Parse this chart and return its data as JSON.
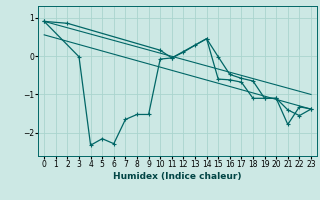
{
  "xlabel": "Humidex (Indice chaleur)",
  "bg_color": "#cce8e4",
  "grid_color": "#aad4ce",
  "line_color": "#006666",
  "xlim": [
    -0.5,
    23.5
  ],
  "ylim": [
    -2.6,
    1.3
  ],
  "yticks": [
    1,
    0,
    -1,
    -2
  ],
  "xticks": [
    0,
    1,
    2,
    3,
    4,
    5,
    6,
    7,
    8,
    9,
    10,
    11,
    12,
    13,
    14,
    15,
    16,
    17,
    18,
    19,
    20,
    21,
    22,
    23
  ],
  "series1_x": [
    0,
    2,
    10,
    11,
    12,
    13,
    14,
    15,
    16,
    17,
    18,
    19,
    20,
    21,
    22,
    23
  ],
  "series1_y": [
    0.9,
    0.85,
    0.15,
    -0.05,
    0.1,
    0.28,
    0.45,
    -0.02,
    -0.48,
    -0.58,
    -0.65,
    -1.1,
    -1.1,
    -1.4,
    -1.55,
    -1.38
  ],
  "series2_x": [
    0,
    3,
    4,
    5,
    6,
    7,
    8,
    9,
    10,
    11,
    14,
    15,
    16,
    17,
    18,
    19,
    20,
    21,
    22,
    23
  ],
  "series2_y": [
    0.9,
    -0.02,
    -2.32,
    -2.15,
    -2.28,
    -1.65,
    -1.52,
    -1.52,
    -0.08,
    -0.05,
    0.45,
    -0.6,
    -0.62,
    -0.68,
    -1.1,
    -1.1,
    -1.1,
    -1.78,
    -1.32,
    -1.38
  ],
  "trend1_x": [
    0,
    23
  ],
  "trend1_y": [
    0.9,
    -1.0
  ],
  "trend2_x": [
    0,
    23
  ],
  "trend2_y": [
    0.55,
    -1.38
  ]
}
